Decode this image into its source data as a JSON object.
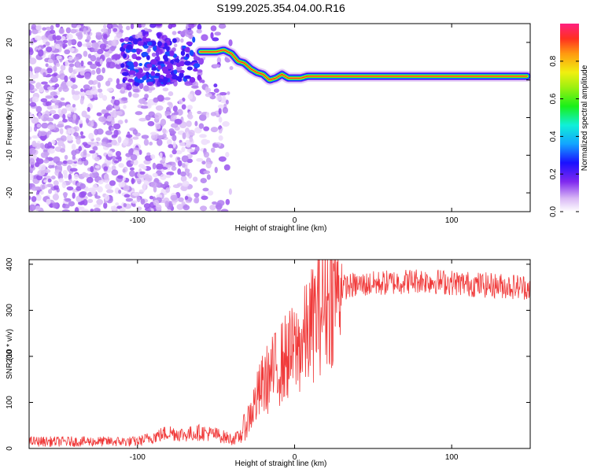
{
  "title": "S199.2025.354.04.00.R16",
  "chart_data": [
    {
      "type": "heatmap",
      "xlabel": "Height of straight line (km)",
      "ylabel": "Frequency (Hz)",
      "xlim": [
        -169,
        150
      ],
      "ylim": [
        -25,
        25
      ],
      "x_ticks": [
        -100,
        0,
        100
      ],
      "y_ticks": [
        -20,
        -10,
        0,
        10,
        20
      ],
      "colorbar": {
        "label": "Normalized spectral amplitude",
        "range": [
          0,
          1
        ],
        "ticks": [
          0.0,
          0.2,
          0.4,
          0.6,
          0.8
        ]
      },
      "ridge": {
        "x": [
          -60,
          -55,
          -50,
          -45,
          -40,
          -36,
          -32,
          -28,
          -24,
          -20,
          -16,
          -12,
          -8,
          -4,
          0,
          4,
          8,
          12,
          20,
          40,
          60,
          80,
          100,
          120,
          148
        ],
        "y": [
          17.5,
          17.5,
          17.5,
          18,
          17,
          15,
          14.5,
          13,
          12,
          11.5,
          10,
          10.5,
          11.5,
          10.5,
          10.5,
          10.5,
          11,
          11,
          11,
          11,
          11,
          11,
          11,
          11,
          11
        ]
      }
    },
    {
      "type": "line",
      "xlabel": "Height of straight line (km)",
      "ylabel": "SNR (10 * v/v)",
      "xlim": [
        -169,
        150
      ],
      "ylim": [
        0,
        410
      ],
      "x_ticks": [
        -100,
        0,
        100
      ],
      "y_ticks": [
        0,
        100,
        200,
        300,
        400
      ],
      "color": "#f03a3a",
      "envelope": {
        "x": [
          -169,
          -100,
          -95,
          -90,
          -80,
          -70,
          -60,
          -50,
          -45,
          -40,
          -35,
          -30,
          -25,
          -20,
          -15,
          -10,
          -5,
          0,
          5,
          10,
          15,
          20,
          25,
          30,
          40,
          60,
          80,
          100,
          120,
          150
        ],
        "y": [
          15,
          15,
          20,
          25,
          35,
          30,
          35,
          30,
          25,
          20,
          25,
          60,
          100,
          140,
          160,
          180,
          200,
          210,
          230,
          260,
          300,
          320,
          340,
          350,
          355,
          360,
          365,
          360,
          355,
          350
        ]
      }
    }
  ]
}
